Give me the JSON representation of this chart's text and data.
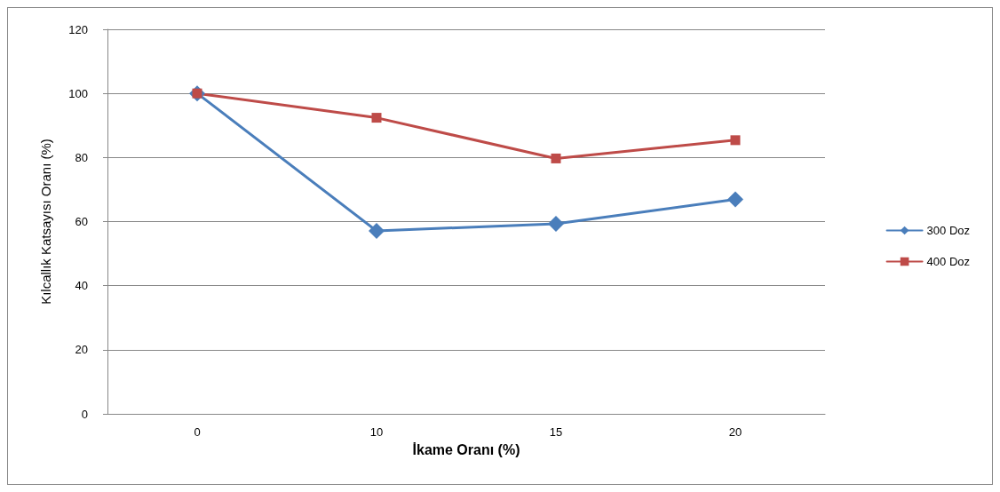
{
  "chart_data": {
    "type": "line",
    "xlabel": "İkame Oranı (%)",
    "ylabel": "Kılcallık Katsayısı Oranı (%)",
    "categories": [
      "0",
      "10",
      "15",
      "20"
    ],
    "series": [
      {
        "name": "300 Doz",
        "color": "#4a7ebb",
        "marker": "diamond",
        "values": [
          100,
          57.1,
          59.3,
          66.9
        ]
      },
      {
        "name": "400 Doz",
        "color": "#be4b48",
        "marker": "square",
        "values": [
          100,
          92.4,
          79.7,
          85.4
        ]
      }
    ],
    "ylim": [
      0,
      120
    ],
    "yticks": [
      0,
      20,
      40,
      60,
      80,
      100,
      120
    ],
    "grid": "y",
    "legend": "right"
  }
}
